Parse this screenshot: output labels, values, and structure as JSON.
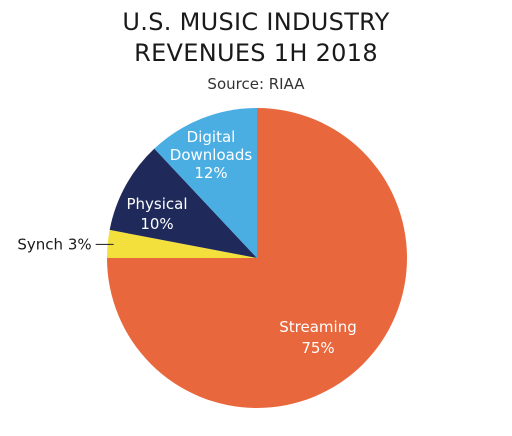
{
  "chart_data": {
    "type": "pie",
    "title_lines": [
      "U.S. MUSIC INDUSTRY",
      "REVENUES 1H 2018"
    ],
    "subtitle": "Source: RIAA",
    "slices": [
      {
        "name": "Streaming",
        "value": 75,
        "value_label": "75%",
        "color": "#e8673c",
        "label_color": "#ffffff"
      },
      {
        "name": "Synch",
        "value": 3,
        "value_label": "3%",
        "color": "#f4e03c",
        "label_color": "#1a1a1a",
        "outside_label": "Synch 3%"
      },
      {
        "name": "Physical",
        "value": 10,
        "value_label": "10%",
        "color": "#1f2a5a",
        "label_color": "#ffffff"
      },
      {
        "name": "Digital Downloads",
        "label_lines": [
          "Digital",
          "Downloads"
        ],
        "value": 12,
        "value_label": "12%",
        "color": "#4aaee3",
        "label_color": "#ffffff"
      }
    ],
    "start": "12 o'clock",
    "direction": "clockwise"
  }
}
